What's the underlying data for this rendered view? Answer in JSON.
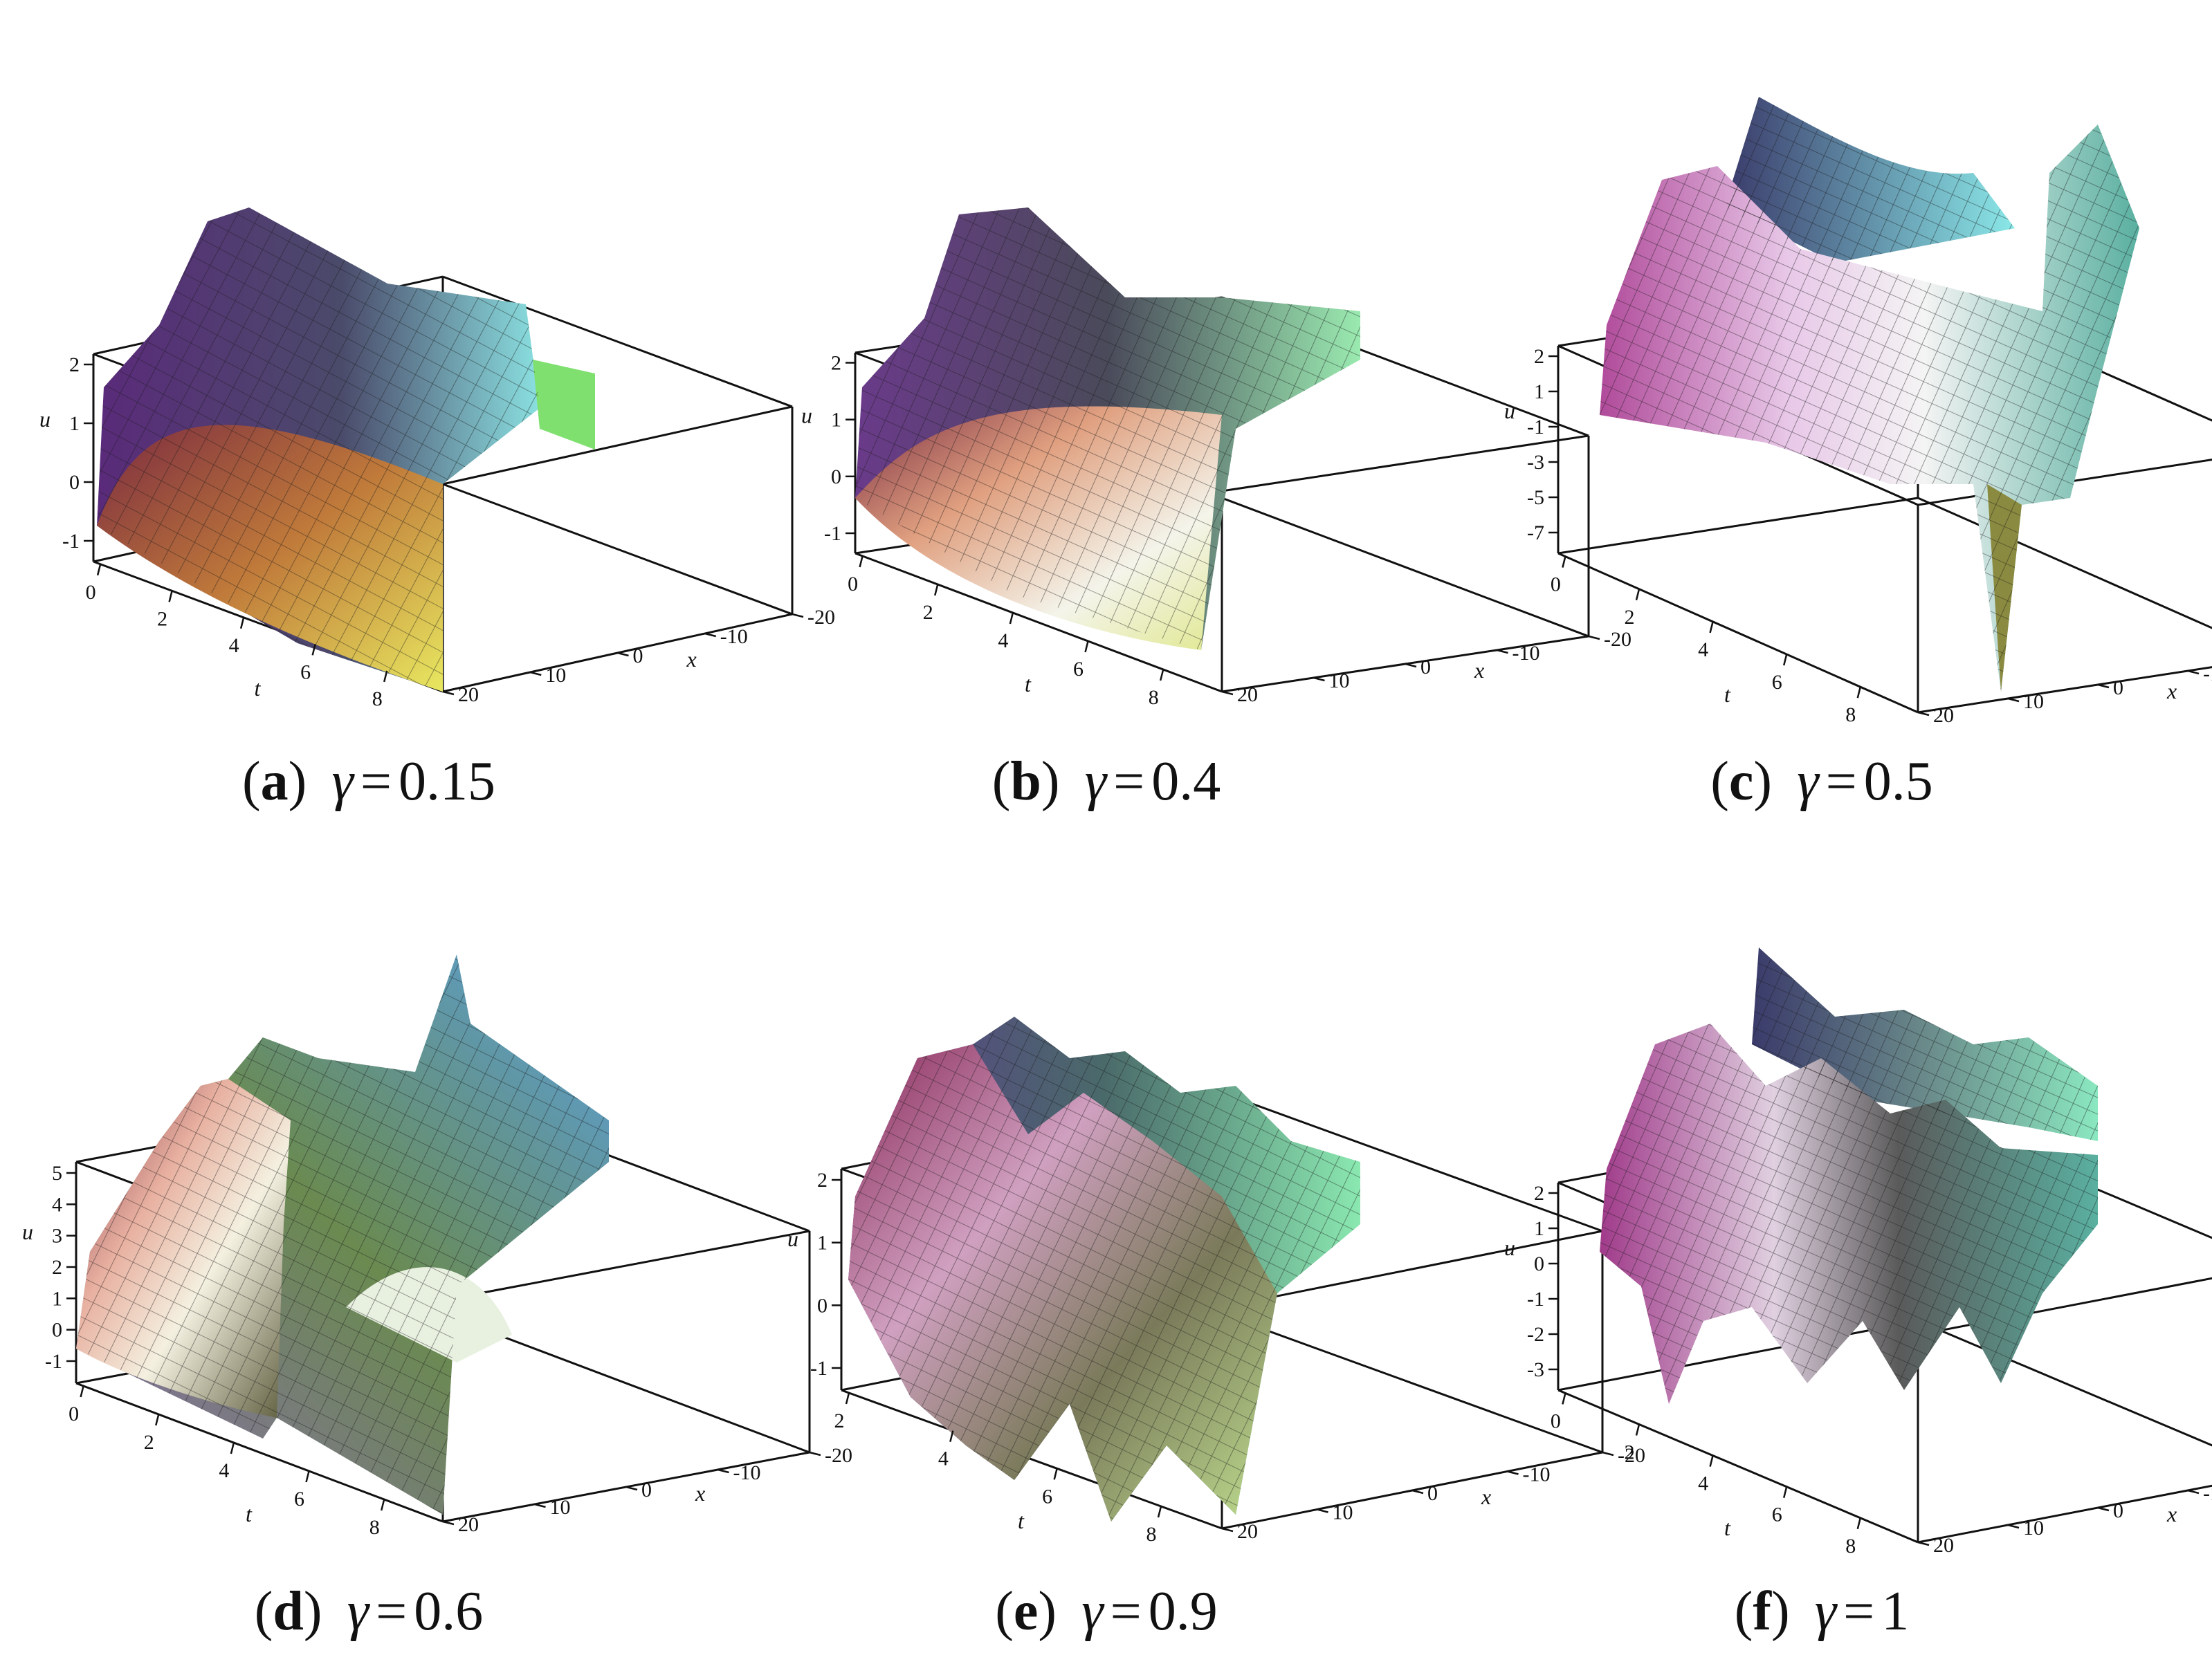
{
  "chart_data": [
    {
      "type": "surface",
      "panel_label": "a",
      "parameter_symbol": "γ",
      "parameter_value": "0.15",
      "zlabel": "u",
      "xlabel": "x",
      "tlabel": "t",
      "z_ticks": [
        "2",
        "1",
        "0",
        "-1"
      ],
      "x_ticks": [
        "-20",
        "-10",
        "0",
        "10",
        "20"
      ],
      "t_ticks": [
        "0",
        "2",
        "4",
        "6",
        "8"
      ],
      "tlim": [
        0,
        10
      ],
      "xlim": [
        -20,
        20
      ],
      "zlim": [
        -1.5,
        2
      ],
      "grid": true
    },
    {
      "type": "surface",
      "panel_label": "b",
      "parameter_symbol": "γ",
      "parameter_value": "0.4",
      "zlabel": "u",
      "xlabel": "x",
      "tlabel": "t",
      "z_ticks": [
        "2",
        "1",
        "0",
        "-1"
      ],
      "x_ticks": [
        "-20",
        "-10",
        "0",
        "10",
        "20"
      ],
      "t_ticks": [
        "0",
        "2",
        "4",
        "6",
        "8"
      ],
      "tlim": [
        0,
        10
      ],
      "xlim": [
        -20,
        20
      ],
      "zlim": [
        -1.5,
        2
      ],
      "grid": true
    },
    {
      "type": "surface",
      "panel_label": "c",
      "parameter_symbol": "γ",
      "parameter_value": "0.5",
      "zlabel": "u",
      "xlabel": "x",
      "tlabel": "t",
      "z_ticks": [
        "2",
        "1",
        "-1",
        "-3",
        "-5",
        "-7"
      ],
      "x_ticks": [
        "-20",
        "-10",
        "0",
        "10",
        "20"
      ],
      "t_ticks": [
        "0",
        "2",
        "4",
        "6",
        "8"
      ],
      "tlim": [
        0,
        10
      ],
      "xlim": [
        -20,
        20
      ],
      "zlim": [
        -8,
        2
      ],
      "grid": true
    },
    {
      "type": "surface",
      "panel_label": "d",
      "parameter_symbol": "γ",
      "parameter_value": "0.6",
      "zlabel": "u",
      "xlabel": "x",
      "tlabel": "t",
      "z_ticks": [
        "5",
        "4",
        "3",
        "2",
        "1",
        "0",
        "-1"
      ],
      "x_ticks": [
        "-20",
        "-10",
        "0",
        "10",
        "20"
      ],
      "t_ticks": [
        "0",
        "2",
        "4",
        "6",
        "8"
      ],
      "tlim": [
        0,
        10
      ],
      "xlim": [
        -20,
        20
      ],
      "zlim": [
        -1.5,
        5
      ],
      "grid": true
    },
    {
      "type": "surface",
      "panel_label": "e",
      "parameter_symbol": "γ",
      "parameter_value": "0.9",
      "zlabel": "u",
      "xlabel": "x",
      "tlabel": "t",
      "z_ticks": [
        "2",
        "1",
        "0",
        "-1"
      ],
      "x_ticks": [
        "-20",
        "-10",
        "0",
        "10",
        "20"
      ],
      "t_ticks": [
        "2",
        "4",
        "6",
        "8"
      ],
      "tlim": [
        0,
        10
      ],
      "xlim": [
        -20,
        20
      ],
      "zlim": [
        -1.5,
        2
      ],
      "grid": true
    },
    {
      "type": "surface",
      "panel_label": "f",
      "parameter_symbol": "γ",
      "parameter_value": "1",
      "zlabel": "u",
      "xlabel": "x",
      "tlabel": "t",
      "z_ticks": [
        "2",
        "1",
        "0",
        "-1",
        "-2",
        "-3"
      ],
      "x_ticks": [
        "-20",
        "-10",
        "0",
        "10",
        "20"
      ],
      "t_ticks": [
        "0",
        "2",
        "4",
        "6",
        "8"
      ],
      "tlim": [
        0,
        10
      ],
      "xlim": [
        -20,
        20
      ],
      "zlim": [
        -3.5,
        2
      ],
      "grid": true
    }
  ]
}
